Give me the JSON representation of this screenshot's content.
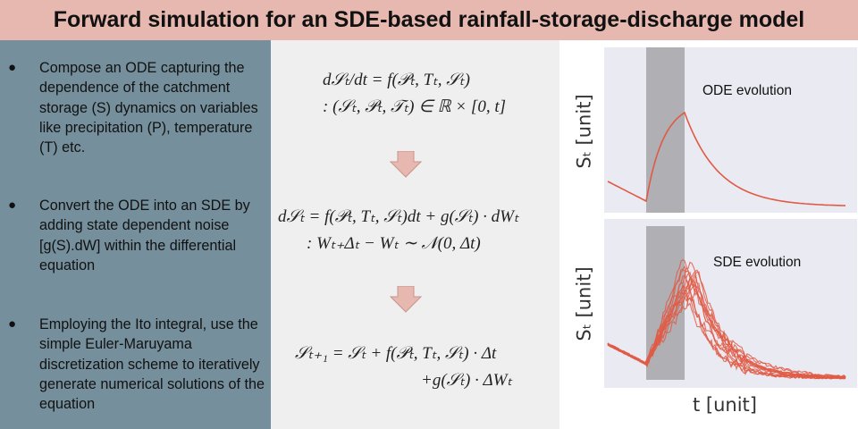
{
  "title": "Forward simulation for an SDE-based rainfall-storage-discharge model",
  "bullets": [
    "Compose an ODE capturing the dependence of the catchment storage (S) dynamics on variables like precipitation (P), temperature (T) etc.",
    "Convert the ODE into an SDE by adding state dependent noise [g(S).dW] within the differential equation",
    "Employing the Ito integral, use the simple Euler-Maruyama discretization scheme to iteratively generate numerical solutions of the equation"
  ],
  "equations": {
    "ode_line1": "d𝒮ₜ/dt = f(𝒫ₜ, Tₜ, 𝒮ₜ)",
    "ode_line2": ": (𝒮ₜ, 𝒫ₜ, 𝒯ₜ) ∈ ℝ × [0, t]",
    "sde_line1": "d𝒮ₜ = f(𝒫ₜ, Tₜ, 𝒮ₜ)dt + g(𝒮ₜ) · dWₜ",
    "sde_line2": ": Wₜ₊Δₜ − Wₜ ∼ 𝒩(0, Δt)",
    "em_line1": "𝒮ₜ₊₁ = 𝒮ₜ + f(𝒫ₜ, Tₜ, 𝒮ₜ) · Δt",
    "em_line2": "+g(𝒮ₜ) · ΔWₜ"
  },
  "plots": {
    "ode_title": "ODE evolution",
    "sde_title": "SDE evolution",
    "ylabel": "Sₜ [unit]",
    "xlabel": "t [unit]"
  },
  "colors": {
    "title_bg": "#e6b8b0",
    "left_bg": "#75909c",
    "middle_bg": "#efefef",
    "arrow_fill": "#e6b8b0",
    "plot_bg": "#eaeaf2",
    "curve": "#e05a45",
    "shade": "#a8a8ad"
  }
}
